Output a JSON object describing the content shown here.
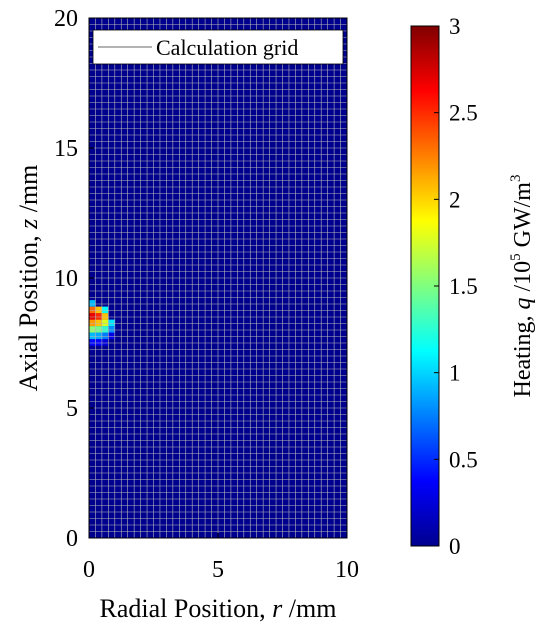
{
  "chart_data": {
    "type": "heatmap",
    "xlabel": {
      "prefix": "Radial Position, ",
      "symbol": "r",
      "unit": " /mm"
    },
    "ylabel": {
      "prefix": "Axial Position, ",
      "symbol": "z",
      "unit": " /mm"
    },
    "xlim": [
      0,
      10
    ],
    "ylim": [
      0,
      20
    ],
    "xticks": [
      "0",
      "5",
      "10"
    ],
    "yticks": [
      "0",
      "5",
      "10",
      "15",
      "20"
    ],
    "grid_spacing_mm": {
      "r": 0.25,
      "z": 0.25
    },
    "background_value": 0,
    "hotspot": {
      "r_center": 0.0,
      "z_center": 8.1,
      "r_radius": 0.95,
      "z_radius": 0.95,
      "peak_value": 3.0,
      "peak_z_offset": 0.45
    },
    "legend": {
      "entries": [
        "Calculation grid"
      ],
      "placement": "top-right"
    },
    "colorbar": {
      "label": {
        "prefix": "Heating, ",
        "symbol": "q",
        "middle": " /10",
        "exp": "5",
        "unit": " GW/m",
        "unit_exp": "3"
      },
      "range": [
        0,
        3
      ],
      "ticks": [
        "0",
        "0.5",
        "1",
        "1.5",
        "2",
        "2.5",
        "3"
      ],
      "colormap": "jet"
    }
  }
}
